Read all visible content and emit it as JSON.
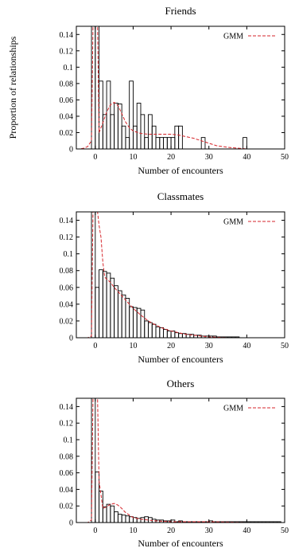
{
  "colors": {
    "bars": "#000000",
    "gmm": "#d6262b",
    "axes": "#000000"
  },
  "chart_data": [
    {
      "type": "bar",
      "title": "Friends",
      "xlabel": "Number of encounters",
      "ylabel": "Proportion of relationships",
      "xlim": [
        -5,
        50
      ],
      "ylim": [
        0,
        0.15
      ],
      "xticks": [
        "0",
        "10",
        "20",
        "30",
        "40",
        "50"
      ],
      "xtick_values": [
        0,
        10,
        20,
        30,
        40,
        50
      ],
      "yticks": [
        "0",
        "0.02",
        "0.04",
        "0.06",
        "0.08",
        "0.1",
        "0.12",
        "0.14"
      ],
      "ytick_values": [
        0,
        0.02,
        0.04,
        0.06,
        0.08,
        0.1,
        0.12,
        0.14
      ],
      "grid": false,
      "legend": {
        "label": "GMM",
        "position": "top-right"
      },
      "bars": {
        "x": [
          -1,
          0,
          1,
          2,
          3,
          4,
          5,
          6,
          7,
          8,
          9,
          10,
          11,
          12,
          13,
          14,
          15,
          16,
          17,
          18,
          19,
          20,
          21,
          22,
          23,
          24,
          25,
          26,
          27,
          28,
          29,
          30,
          31,
          32,
          33,
          34,
          35,
          36,
          37,
          38,
          39,
          40
        ],
        "values": [
          0.15,
          0.15,
          0.083,
          0.042,
          0.083,
          0.042,
          0.056,
          0.055,
          0.028,
          0.014,
          0.083,
          0.028,
          0.056,
          0.042,
          0.014,
          0.042,
          0.028,
          0.014,
          0.014,
          0.014,
          0.014,
          0.014,
          0.028,
          0.028,
          0,
          0,
          0,
          0,
          0,
          0.014,
          0,
          0,
          0,
          0,
          0,
          0,
          0,
          0,
          0,
          0,
          0.014,
          0
        ]
      },
      "gmm": {
        "x": [
          -5,
          -4,
          -3,
          -2,
          -1,
          -0.6,
          -0.4,
          -0.2,
          0,
          0.2,
          0.4,
          0.6,
          1,
          2,
          3,
          4,
          5,
          6,
          7,
          8,
          9,
          10,
          12,
          14,
          16,
          18,
          20,
          22,
          24,
          26,
          28,
          30,
          32,
          35,
          40,
          45,
          50
        ],
        "y": [
          0,
          0,
          0.001,
          0.003,
          0.01,
          0.15,
          0.15,
          0.15,
          0.15,
          0.15,
          0.15,
          0.15,
          0.02,
          0.032,
          0.045,
          0.054,
          0.057,
          0.053,
          0.043,
          0.033,
          0.026,
          0.022,
          0.019,
          0.018,
          0.018,
          0.018,
          0.018,
          0.017,
          0.015,
          0.013,
          0.01,
          0.007,
          0.004,
          0.002,
          0,
          0,
          0
        ]
      }
    },
    {
      "type": "bar",
      "title": "Classmates",
      "xlabel": "Number of encounters",
      "ylabel": "",
      "xlim": [
        -5,
        50
      ],
      "ylim": [
        0,
        0.15
      ],
      "xticks": [
        "0",
        "10",
        "20",
        "30",
        "40",
        "50"
      ],
      "xtick_values": [
        0,
        10,
        20,
        30,
        40,
        50
      ],
      "yticks": [
        "0",
        "0.02",
        "0.04",
        "0.06",
        "0.08",
        "0.1",
        "0.12",
        "0.14"
      ],
      "ytick_values": [
        0,
        0.02,
        0.04,
        0.06,
        0.08,
        0.1,
        0.12,
        0.14
      ],
      "grid": false,
      "legend": {
        "label": "GMM",
        "position": "top-right"
      },
      "bars": {
        "x": [
          -1,
          0,
          1,
          2,
          3,
          4,
          5,
          6,
          7,
          8,
          9,
          10,
          11,
          12,
          13,
          14,
          15,
          16,
          17,
          18,
          19,
          20,
          21,
          22,
          23,
          24,
          25,
          26,
          27,
          28,
          29,
          30,
          31,
          32,
          33,
          34,
          35,
          36,
          37
        ],
        "values": [
          0.15,
          0.06,
          0.081,
          0.079,
          0.077,
          0.071,
          0.062,
          0.056,
          0.051,
          0.047,
          0.037,
          0.036,
          0.035,
          0.033,
          0.02,
          0.018,
          0.016,
          0.013,
          0.012,
          0.01,
          0.008,
          0.008,
          0.006,
          0.005,
          0.005,
          0.004,
          0.004,
          0.003,
          0.003,
          0.002,
          0.002,
          0.002,
          0.002,
          0.001,
          0.001,
          0.001,
          0.001,
          0.001,
          0.001
        ]
      },
      "gmm": {
        "x": [
          -5,
          -2,
          -1,
          -0.6,
          -0.4,
          -0.2,
          0,
          0.2,
          0.4,
          0.6,
          1,
          1.5,
          2,
          2.5,
          3,
          4,
          5,
          6,
          7,
          8,
          9,
          10,
          12,
          14,
          16,
          18,
          20,
          22,
          24,
          26,
          28,
          30,
          35,
          40,
          45,
          50
        ],
        "y": [
          0,
          0,
          0.002,
          0.15,
          0.15,
          0.15,
          0.15,
          0.15,
          0.15,
          0.15,
          0.134,
          0.12,
          0.09,
          0.072,
          0.07,
          0.066,
          0.06,
          0.055,
          0.05,
          0.045,
          0.04,
          0.035,
          0.027,
          0.02,
          0.015,
          0.011,
          0.008,
          0.006,
          0.004,
          0.003,
          0.002,
          0.001,
          0,
          0,
          0,
          0
        ]
      }
    },
    {
      "type": "bar",
      "title": "Others",
      "xlabel": "Number of encounters",
      "ylabel": "",
      "xlim": [
        -5,
        50
      ],
      "ylim": [
        0,
        0.15
      ],
      "xticks": [
        "0",
        "10",
        "20",
        "30",
        "40",
        "50"
      ],
      "xtick_values": [
        0,
        10,
        20,
        30,
        40,
        50
      ],
      "yticks": [
        "0",
        "0.02",
        "0.04",
        "0.06",
        "0.08",
        "0.1",
        "0.12",
        "0.14"
      ],
      "ytick_values": [
        0,
        0.02,
        0.04,
        0.06,
        0.08,
        0.1,
        0.12,
        0.14
      ],
      "grid": false,
      "legend": {
        "label": "GMM",
        "position": "top-right"
      },
      "bars": {
        "x": [
          -1,
          0,
          1,
          2,
          3,
          4,
          5,
          6,
          7,
          8,
          9,
          10,
          11,
          12,
          13,
          14,
          15,
          16,
          17,
          18,
          19,
          20,
          21,
          22,
          23,
          24,
          25,
          26,
          27,
          28,
          29,
          30,
          31,
          32,
          33,
          34,
          35,
          36,
          37,
          38,
          39,
          40,
          41,
          42,
          43,
          44,
          45,
          46,
          47,
          48
        ],
        "values": [
          0.15,
          0.061,
          0.038,
          0.019,
          0.022,
          0.02,
          0.013,
          0.01,
          0.009,
          0.008,
          0.007,
          0.006,
          0.005,
          0.006,
          0.007,
          0.006,
          0.004,
          0.003,
          0.003,
          0.002,
          0.002,
          0.003,
          0.001,
          0.002,
          0.001,
          0.001,
          0.001,
          0.001,
          0.001,
          0.001,
          0.001,
          0.002,
          0.001,
          0.001,
          0.001,
          0.001,
          0.001,
          0.001,
          0.001,
          0.001,
          0.001,
          0.001,
          0.001,
          0.001,
          0.001,
          0.001,
          0.001,
          0.001,
          0.001,
          0.001
        ]
      },
      "gmm": {
        "x": [
          -5,
          -2,
          -1,
          -0.6,
          -0.4,
          -0.2,
          0,
          0.2,
          0.4,
          0.6,
          1,
          2,
          3,
          4,
          5,
          6,
          7,
          8,
          10,
          12,
          14,
          16,
          20,
          25,
          30,
          40,
          50
        ],
        "y": [
          0,
          0,
          0.003,
          0.15,
          0.15,
          0.15,
          0.15,
          0.15,
          0.15,
          0.15,
          0.05,
          0.017,
          0.019,
          0.022,
          0.023,
          0.021,
          0.017,
          0.012,
          0.006,
          0.004,
          0.003,
          0.002,
          0.001,
          0.001,
          0.001,
          0,
          0
        ]
      }
    }
  ]
}
